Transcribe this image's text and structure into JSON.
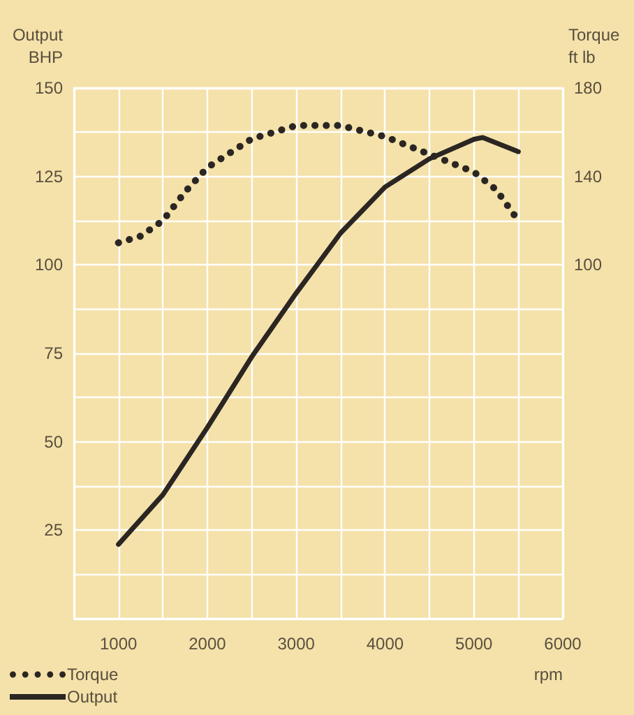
{
  "chart_data": {
    "type": "line",
    "x": [
      1000,
      1500,
      2000,
      2500,
      3000,
      3500,
      4000,
      4500,
      5000,
      5100,
      5500
    ],
    "series": [
      {
        "name": "Torque",
        "color": "#2b2622",
        "axis": "y2",
        "line_style": "dotted",
        "x": [
          1000,
          1250,
          1500,
          1750,
          2000,
          2500,
          3000,
          3500,
          4000,
          4500,
          5000,
          5250,
          5500
        ],
        "values": [
          110,
          113,
          120,
          133,
          144,
          157,
          163,
          163,
          158,
          150,
          142,
          134,
          120
        ]
      },
      {
        "name": "Output",
        "color": "#2b2622",
        "line_style": "solid",
        "values": [
          21,
          35,
          54,
          74,
          92,
          109,
          122,
          130,
          135.5,
          136,
          132
        ]
      }
    ],
    "ylabel": "Output BHP",
    "y2label": "Torque ft lb",
    "xlabel": "rpm",
    "xlim": [
      500,
      6000
    ],
    "xticks": [
      {
        "value": 500,
        "label": null
      },
      1000,
      {
        "value": 1500,
        "label": null
      },
      2000,
      {
        "value": 2500,
        "label": null
      },
      3000,
      {
        "value": 3500,
        "label": null
      },
      4000,
      {
        "value": 4500,
        "label": null
      },
      5000,
      {
        "value": 5500,
        "label": null
      },
      6000
    ],
    "ylim": [
      0,
      150
    ],
    "yticks": [
      {
        "value": 0,
        "label": null
      },
      {
        "value": 12.5,
        "label": null
      },
      25,
      {
        "value": 37.5,
        "label": null
      },
      50,
      {
        "value": 62.5,
        "label": null
      },
      75,
      {
        "value": 87.5,
        "label": null
      },
      100,
      {
        "value": 112.5,
        "label": null
      },
      125,
      {
        "value": 137.5,
        "label": null
      },
      150
    ],
    "y2lim": [
      -60,
      180
    ],
    "y2ticks": [
      100,
      140,
      180
    ],
    "grid": true,
    "legend": "bottom left",
    "marker": "none"
  }
}
